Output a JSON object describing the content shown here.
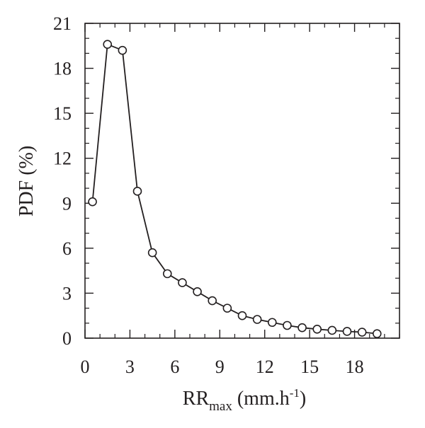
{
  "chart_data": {
    "type": "line",
    "title": "",
    "xlabel": {
      "main": "RR",
      "sub": "max",
      "units_pre": " (mm.h",
      "sup": "-1",
      "units_post": ")"
    },
    "ylabel": "PDF (%)",
    "xlim": [
      0,
      21
    ],
    "ylim": [
      0,
      21
    ],
    "x_ticks": [
      0,
      3,
      6,
      9,
      12,
      15,
      18
    ],
    "y_ticks": [
      0,
      3,
      6,
      9,
      12,
      15,
      18,
      21
    ],
    "minor_step": 1,
    "grid": false,
    "legend": "none",
    "marker": "open-circle",
    "line_color": "#231f20",
    "series": [
      {
        "x": [
          0.5,
          1.5,
          2.5,
          3.5,
          4.5,
          5.5,
          6.5,
          7.5,
          8.5,
          9.5,
          10.5,
          11.5,
          12.5,
          13.5,
          14.5,
          15.5,
          16.5,
          17.5,
          18.5,
          19.5
        ],
        "values": [
          9.1,
          19.6,
          19.2,
          9.8,
          5.7,
          4.3,
          3.7,
          3.1,
          2.5,
          2.0,
          1.5,
          1.25,
          1.05,
          0.85,
          0.7,
          0.6,
          0.52,
          0.45,
          0.4,
          0.3
        ]
      }
    ]
  }
}
